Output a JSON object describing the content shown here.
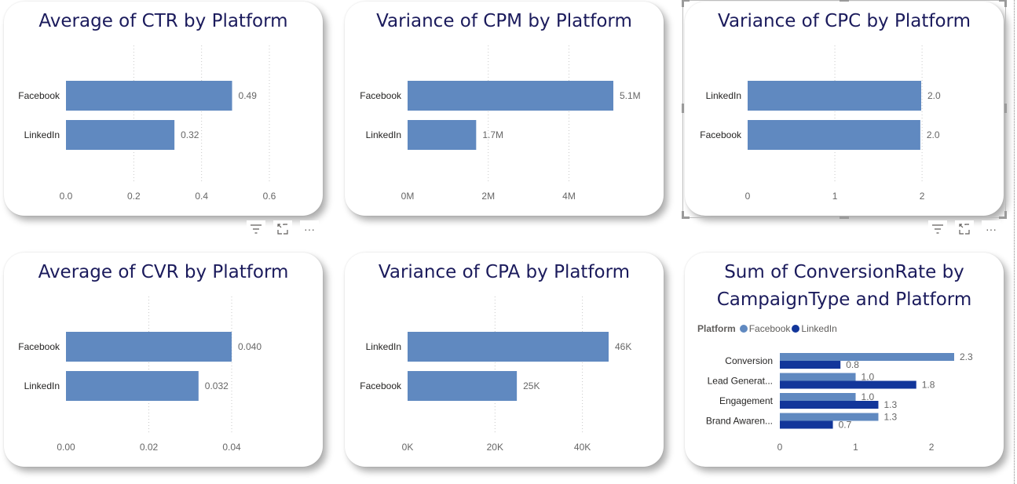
{
  "colors": {
    "bar": "#6089C0",
    "facebook": "#6089C0",
    "linkedin": "#12369A",
    "title": "#1b1b5c"
  },
  "toolbar": {
    "filter_icon": "filter-icon",
    "focus_icon": "focus-mode-icon",
    "more_icon": "more-options-icon",
    "more_label": "···"
  },
  "charts": {
    "ctr": {
      "title": "Average of CTR by Platform",
      "chart_data": {
        "type": "bar",
        "orientation": "horizontal",
        "categories": [
          "Facebook",
          "LinkedIn"
        ],
        "values": [
          0.49,
          0.32
        ],
        "data_labels": [
          "0.49",
          "0.32"
        ],
        "xlim": [
          0,
          0.6
        ],
        "ticks": [
          0,
          0.2,
          0.4,
          0.6
        ],
        "tick_labels": [
          "0.0",
          "0.2",
          "0.4",
          "0.6"
        ],
        "grid": true
      }
    },
    "cpm": {
      "title": "Variance of CPM by Platform",
      "chart_data": {
        "type": "bar",
        "orientation": "horizontal",
        "categories": [
          "Facebook",
          "LinkedIn"
        ],
        "values": [
          5100000,
          1700000
        ],
        "data_labels": [
          "5.1M",
          "1.7M"
        ],
        "xlim": [
          0,
          5100000
        ],
        "ticks": [
          0,
          2000000,
          4000000
        ],
        "tick_labels": [
          "0M",
          "2M",
          "4M"
        ],
        "grid": true
      }
    },
    "cpc": {
      "title": "Variance of CPC by Platform",
      "chart_data": {
        "type": "bar",
        "orientation": "horizontal",
        "categories": [
          "LinkedIn",
          "Facebook"
        ],
        "values": [
          1.99,
          1.98
        ],
        "data_labels": [
          "2.0",
          "2.0"
        ],
        "xlim": [
          0,
          1.99
        ],
        "ticks": [
          0,
          1,
          2
        ],
        "tick_labels": [
          "0",
          "1",
          "2"
        ],
        "grid": true
      }
    },
    "cvr": {
      "title": "Average of CVR by Platform",
      "chart_data": {
        "type": "bar",
        "orientation": "horizontal",
        "categories": [
          "Facebook",
          "LinkedIn"
        ],
        "values": [
          0.04,
          0.032
        ],
        "data_labels": [
          "0.040",
          "0.032"
        ],
        "xlim": [
          0,
          0.04
        ],
        "ticks": [
          0,
          0.02,
          0.04
        ],
        "tick_labels": [
          "0.00",
          "0.02",
          "0.04"
        ],
        "grid": true
      }
    },
    "cpa": {
      "title": "Variance of CPA by Platform",
      "chart_data": {
        "type": "bar",
        "orientation": "horizontal",
        "categories": [
          "LinkedIn",
          "Facebook"
        ],
        "values": [
          46000,
          25000
        ],
        "data_labels": [
          "46K",
          "25K"
        ],
        "xlim": [
          0,
          46000
        ],
        "ticks": [
          0,
          20000,
          40000
        ],
        "tick_labels": [
          "0K",
          "20K",
          "40K"
        ],
        "grid": true
      }
    },
    "conv": {
      "title": "Sum of ConversionRate by CampaignType and Platform",
      "legend_title": "Platform",
      "chart_data": {
        "type": "bar",
        "orientation": "horizontal",
        "grouped": true,
        "categories": [
          "Conversion",
          "Lead Generat...",
          "Engagement",
          "Brand Awaren..."
        ],
        "series": [
          {
            "name": "Facebook",
            "values": [
              2.3,
              1.0,
              1.0,
              1.3
            ],
            "data_labels": [
              "2.3",
              "1.0",
              "1.0",
              "1.3"
            ]
          },
          {
            "name": "LinkedIn",
            "values": [
              0.8,
              1.8,
              1.3,
              0.7
            ],
            "data_labels": [
              "0.8",
              "1.8",
              "1.3",
              "0.7"
            ]
          }
        ],
        "xlim": [
          0,
          2.3
        ],
        "ticks": [
          0,
          1,
          2
        ],
        "tick_labels": [
          "0",
          "1",
          "2"
        ],
        "grid": false,
        "legend_position": "top-left"
      }
    }
  }
}
